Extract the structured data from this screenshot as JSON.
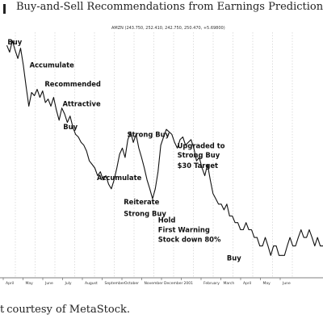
{
  "header": {
    "title": "Buy-and-Sell Recommendations from Earnings Predictions"
  },
  "caption": {
    "prefix": "t",
    "text": "courtesy of MetaStock."
  },
  "chart_data": {
    "type": "line",
    "title": "AMZN (243.750, 252.410, 242.750, 250.470, +5.69800)",
    "xlabel": "",
    "ylabel": "",
    "grid": true,
    "x_ticks": [
      "April",
      "May",
      "June",
      "July",
      "August",
      "September",
      "October",
      "November",
      "December",
      "2001",
      "February",
      "March",
      "April",
      "May",
      "June"
    ],
    "y_scale": "log",
    "ylim": [
      7,
      110
    ],
    "series": [
      {
        "values": [
          [
            1.0,
            95
          ],
          [
            1.4,
            88
          ],
          [
            1.8,
            100
          ],
          [
            2.2,
            90
          ],
          [
            2.6,
            82
          ],
          [
            3.0,
            92
          ],
          [
            3.4,
            76
          ],
          [
            3.8,
            60
          ],
          [
            4.2,
            48
          ],
          [
            4.6,
            56
          ],
          [
            5.0,
            54
          ],
          [
            5.4,
            58
          ],
          [
            5.8,
            53
          ],
          [
            6.2,
            57
          ],
          [
            6.6,
            50
          ],
          [
            7.0,
            52
          ],
          [
            7.4,
            48
          ],
          [
            7.8,
            53
          ],
          [
            8.2,
            46
          ],
          [
            8.6,
            41
          ],
          [
            9.0,
            47
          ],
          [
            9.4,
            44
          ],
          [
            9.8,
            40
          ],
          [
            10.2,
            43
          ],
          [
            10.6,
            38
          ],
          [
            11.0,
            35
          ],
          [
            11.4,
            34
          ],
          [
            11.8,
            32
          ],
          [
            12.2,
            31
          ],
          [
            12.6,
            29
          ],
          [
            13.0,
            26
          ],
          [
            13.4,
            25
          ],
          [
            13.8,
            24
          ],
          [
            14.2,
            22
          ],
          [
            14.6,
            23
          ],
          [
            15.0,
            21
          ],
          [
            15.4,
            22
          ],
          [
            15.8,
            20
          ],
          [
            16.2,
            19
          ],
          [
            16.6,
            21
          ],
          [
            17.0,
            24
          ],
          [
            17.4,
            28
          ],
          [
            17.8,
            30
          ],
          [
            18.2,
            27
          ],
          [
            18.6,
            33
          ],
          [
            19.0,
            36
          ],
          [
            19.4,
            32
          ],
          [
            19.8,
            35
          ],
          [
            20.2,
            30
          ],
          [
            20.6,
            27
          ],
          [
            21.0,
            24
          ],
          [
            21.4,
            21
          ],
          [
            21.8,
            19
          ],
          [
            22.2,
            17
          ],
          [
            22.6,
            19
          ],
          [
            23.0,
            23
          ],
          [
            23.4,
            31
          ],
          [
            23.8,
            34
          ],
          [
            24.2,
            37
          ],
          [
            24.6,
            36
          ],
          [
            25.0,
            35
          ],
          [
            25.4,
            32
          ],
          [
            25.8,
            30
          ],
          [
            26.2,
            33
          ],
          [
            26.6,
            34
          ],
          [
            27.0,
            31
          ],
          [
            27.4,
            32
          ],
          [
            27.8,
            33
          ],
          [
            28.2,
            30
          ],
          [
            28.6,
            26
          ],
          [
            29.0,
            27
          ],
          [
            29.4,
            24
          ],
          [
            29.8,
            22
          ],
          [
            30.2,
            25
          ],
          [
            30.6,
            21
          ],
          [
            31.0,
            18
          ],
          [
            31.4,
            17
          ],
          [
            31.8,
            16
          ],
          [
            32.2,
            16
          ],
          [
            32.6,
            15
          ],
          [
            33.0,
            16
          ],
          [
            33.4,
            14
          ],
          [
            33.8,
            14
          ],
          [
            34.2,
            13
          ],
          [
            34.6,
            13
          ],
          [
            35.0,
            12
          ],
          [
            35.4,
            12
          ],
          [
            35.8,
            13
          ],
          [
            36.2,
            12
          ],
          [
            36.6,
            12
          ],
          [
            37.0,
            11
          ],
          [
            37.4,
            11
          ],
          [
            37.8,
            10
          ],
          [
            38.2,
            10
          ],
          [
            38.6,
            11
          ],
          [
            39.0,
            10
          ],
          [
            39.4,
            9
          ],
          [
            39.8,
            10
          ],
          [
            40.2,
            10
          ],
          [
            40.6,
            9
          ],
          [
            41.0,
            9
          ],
          [
            41.4,
            9
          ],
          [
            41.8,
            10
          ],
          [
            42.2,
            11
          ],
          [
            42.6,
            10
          ],
          [
            43.0,
            10
          ],
          [
            43.4,
            11
          ],
          [
            43.8,
            12
          ],
          [
            44.2,
            11
          ],
          [
            44.6,
            11
          ],
          [
            45.0,
            12
          ],
          [
            45.4,
            11
          ],
          [
            45.8,
            10
          ],
          [
            46.2,
            11
          ],
          [
            46.6,
            10
          ],
          [
            47.0,
            10
          ]
        ]
      }
    ],
    "annotations": [
      {
        "text": "Buy",
        "at": [
          1.1,
          96
        ]
      },
      {
        "text": "Accumulate",
        "at": [
          4.3,
          74
        ]
      },
      {
        "text": "Recommended",
        "at": [
          6.5,
          60
        ]
      },
      {
        "text": "Attractive",
        "at": [
          9.1,
          48
        ]
      },
      {
        "text": "Buy",
        "at": [
          9.2,
          37
        ]
      },
      {
        "text": "Accumulate",
        "at": [
          14.1,
          21
        ]
      },
      {
        "text": "Strong Buy",
        "at": [
          18.5,
          34
        ]
      },
      {
        "text": "Reiterate",
        "at": [
          18.0,
          16
        ]
      },
      {
        "text": "Strong Buy",
        "at": [
          18.0,
          14
        ]
      },
      {
        "text": "Upgraded to",
        "at": [
          25.8,
          30
        ]
      },
      {
        "text": "Strong Buy",
        "at": [
          25.8,
          27
        ]
      },
      {
        "text": "$30 Target",
        "at": [
          25.8,
          24
        ]
      },
      {
        "text": "Hold",
        "at": [
          23.0,
          13
        ]
      },
      {
        "text": "First Warning",
        "at": [
          23.0,
          11.7
        ]
      },
      {
        "text": "Stock down 80%",
        "at": [
          23.0,
          10.5
        ]
      },
      {
        "text": "Buy",
        "at": [
          33.0,
          8.5
        ]
      }
    ]
  }
}
